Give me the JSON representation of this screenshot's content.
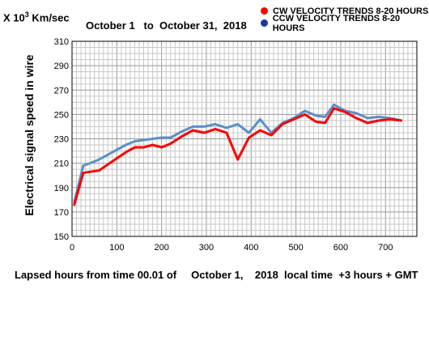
{
  "header": {
    "unit_prefix": "X 10",
    "unit_exponent": "3",
    "unit_suffix": " Km/sec",
    "period": "October 1   to  October 31,  2018"
  },
  "legend": [
    {
      "label": "CW VELOCITY TRENDS 8-20 HOURS",
      "color": "#ff0000"
    },
    {
      "label": "CCW VELOCITY TRENDS 8-20 HOURS",
      "color": "#1a3aa0"
    }
  ],
  "chart_data": {
    "type": "line",
    "ylabel": "Electrical signal speed in wire",
    "xlabel": "Lapsed hours from time 00.01 of     October 1,    2018  local time  +3 hours + GMT",
    "xlim": [
      0,
      770
    ],
    "ylim": [
      150,
      310
    ],
    "xticks": [
      0,
      100,
      200,
      300,
      400,
      500,
      600,
      700
    ],
    "yticks": [
      150,
      170,
      190,
      210,
      230,
      250,
      270,
      290,
      310
    ],
    "grid": true,
    "series": [
      {
        "color": "#5b8fc9",
        "x": [
          5,
          25,
          40,
          60,
          80,
          100,
          120,
          140,
          160,
          180,
          200,
          220,
          245,
          270,
          295,
          320,
          345,
          370,
          395,
          420,
          445,
          470,
          495,
          520,
          545,
          565,
          585,
          610,
          635,
          660,
          685,
          710,
          735
        ],
        "y": [
          178,
          208,
          210,
          213,
          217,
          221,
          225,
          228,
          229,
          230,
          231,
          231,
          236,
          240,
          240,
          242,
          239,
          242,
          235,
          246,
          235,
          243,
          247,
          253,
          249,
          248,
          258,
          253,
          251,
          247,
          248,
          247,
          245
        ]
      },
      {
        "color": "#ff0000",
        "x": [
          5,
          25,
          40,
          60,
          80,
          100,
          120,
          140,
          160,
          180,
          200,
          220,
          245,
          270,
          295,
          320,
          345,
          370,
          395,
          420,
          445,
          470,
          495,
          520,
          545,
          565,
          585,
          610,
          635,
          660,
          685,
          710,
          735
        ],
        "y": [
          176,
          202,
          203,
          204,
          209,
          214,
          219,
          223,
          223,
          225,
          223,
          226,
          232,
          237,
          235,
          238,
          235,
          213,
          231,
          237,
          233,
          242,
          246,
          250,
          244,
          243,
          255,
          252,
          247,
          243,
          245,
          246,
          245
        ]
      }
    ]
  }
}
